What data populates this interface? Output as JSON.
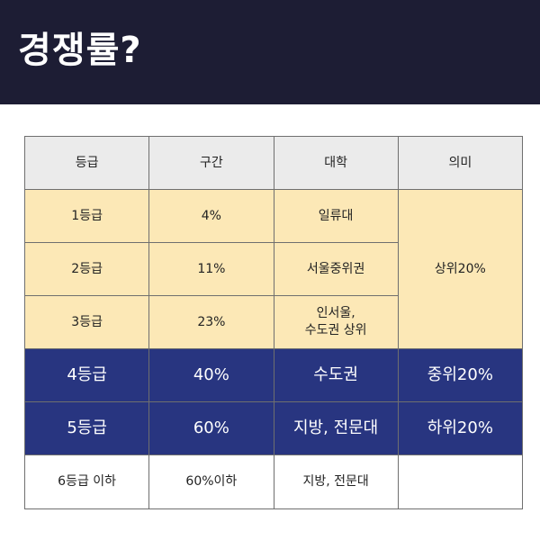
{
  "header": {
    "title": "경쟁률?"
  },
  "table": {
    "headers": [
      "등급",
      "구간",
      "대학",
      "의미"
    ],
    "rows": [
      {
        "grade": "1등급",
        "range": "4%",
        "univ": "일류대"
      },
      {
        "grade": "2등급",
        "range": "11%",
        "univ": "서울중위권"
      },
      {
        "grade": "3등급",
        "range": "23%",
        "univ_line1": "인서울,",
        "univ_line2": "수도권 상위"
      },
      {
        "grade": "4등급",
        "range": "40%",
        "univ": "수도권",
        "meaning": "중위20%"
      },
      {
        "grade": "5등급",
        "range": "60%",
        "univ": "지방, 전문대",
        "meaning": "하위20%"
      },
      {
        "grade": "6등급 이하",
        "range": "60%이하",
        "univ": "지방, 전문대",
        "meaning": ""
      }
    ],
    "merged_meaning": "상위20%"
  },
  "colors": {
    "header_bg": "#1d1d34",
    "head_row_bg": "#ebebeb",
    "light_bg": "#fce8b6",
    "dark_bg": "#283580"
  }
}
